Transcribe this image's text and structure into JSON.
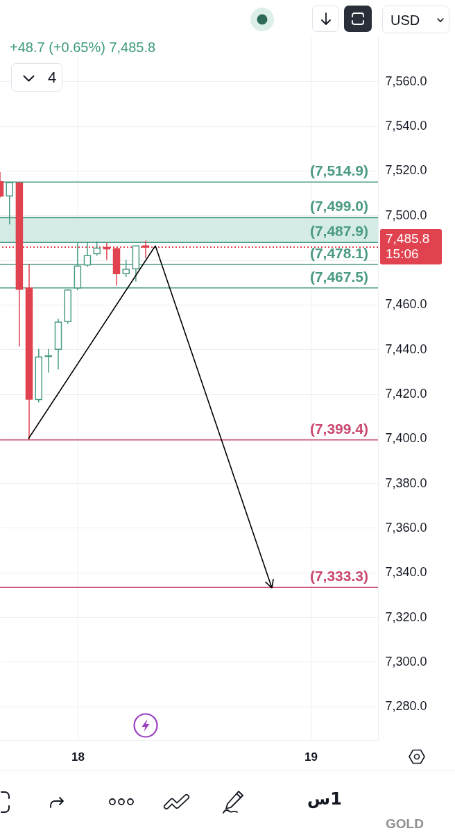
{
  "chart_data": {
    "type": "candlestick",
    "subtitle": "+48.7 (+0.65%) 7,485.8",
    "x": [
      17.667,
      17.708,
      17.75,
      17.792,
      17.833,
      17.875,
      17.917,
      17.958,
      18,
      18.042,
      18.083,
      18.125,
      18.167,
      18.208,
      18.25,
      18.292
    ],
    "ohlc": [
      [
        7515.1,
        7519.4,
        7508.0,
        7508.6
      ],
      [
        7508.7,
        7515.0,
        7496.0,
        7514.6
      ],
      [
        7514.5,
        7514.9,
        7441.2,
        7466.9
      ],
      [
        7467.5,
        7478.1,
        7399.4,
        7417.7
      ],
      [
        7417.5,
        7440.2,
        7416.2,
        7436.6
      ],
      [
        7436.8,
        7440.2,
        7429.6,
        7437.1
      ],
      [
        7440.0,
        7453.7,
        7431.0,
        7452.2
      ],
      [
        7452.4,
        7467.0,
        7451.4,
        7466.6
      ],
      [
        7467.5,
        7487.7,
        7466.4,
        7477.3
      ],
      [
        7477.8,
        7488.2,
        7477.0,
        7482.0
      ],
      [
        7482.8,
        7488.4,
        7482.0,
        7485.3
      ],
      [
        7485.6,
        7487.7,
        7480.1,
        7485.0
      ],
      [
        7485.1,
        7485.6,
        7468.5,
        7473.9
      ],
      [
        7473.9,
        7480.1,
        7472.4,
        7475.8
      ],
      [
        7476.1,
        7486.5,
        7470.3,
        7486.3
      ],
      [
        7486.3,
        7488.7,
        7480.9,
        7485.8
      ]
    ],
    "colors": [
      "#e0434f",
      "#4a9b86",
      "#e0434f",
      "#e0434f",
      "#4a9b86",
      "#4a9b86",
      "#4a9b86",
      "#4a9b86",
      "#4a9b86",
      "#4a9b86",
      "#4a9b86",
      "#e0434f",
      "#e0434f",
      "#4a9b86",
      "#4a9b86",
      "#e0434f"
    ],
    "xlim": [
      17.667,
      19.289
    ],
    "xticks": [
      18,
      19
    ],
    "ylim": [
      7265,
      7580
    ],
    "yticks": [
      {
        "value": 7280,
        "label": "7,280.0"
      },
      {
        "value": 7300,
        "label": "7,300.0"
      },
      {
        "value": 7320,
        "label": "7,320.0"
      },
      {
        "value": 7340,
        "label": "7,340.0"
      },
      {
        "value": 7360,
        "label": "7,360.0"
      },
      {
        "value": 7380,
        "label": "7,380.0"
      },
      {
        "value": 7400,
        "label": "7,400.0"
      },
      {
        "value": 7420,
        "label": "7,420.0"
      },
      {
        "value": 7440,
        "label": "7,440.0"
      },
      {
        "value": 7460,
        "label": "7,460.0"
      },
      {
        "value": 7480,
        "label": null
      },
      {
        "value": 7500,
        "label": "7,500.0"
      },
      {
        "value": 7520,
        "label": "7,520.0"
      },
      {
        "value": 7540,
        "label": "7,540.0"
      },
      {
        "value": 7560,
        "label": "7,560.0"
      }
    ],
    "grid": true,
    "bands": [
      {
        "axis": "y",
        "from": 7487.9,
        "to": 7499.0,
        "color": "#d4ebe6"
      }
    ],
    "ref_lines": [
      {
        "axis": "y",
        "value": 7514.9,
        "label": "(7,514.9)",
        "color": "#4a9a84"
      },
      {
        "axis": "y",
        "value": 7499.0,
        "label": "(7,499.0)",
        "color": "#4a9a84"
      },
      {
        "axis": "y",
        "value": 7487.9,
        "label": "(7,487.9)",
        "color": "#4a9a84"
      },
      {
        "axis": "y",
        "value": 7478.1,
        "label": "(7,478.1)",
        "color": "#4a9a84"
      },
      {
        "axis": "y",
        "value": 7467.5,
        "label": "(7,467.5)",
        "color": "#4a9a84"
      },
      {
        "axis": "y",
        "value": 7399.4,
        "label": "(7,399.4)",
        "color": "#c94a6e"
      },
      {
        "axis": "y",
        "value": 7333.3,
        "label": "(7,333.3)",
        "color": "#c94a6e"
      },
      {
        "axis": "y",
        "value": 7485.8,
        "label": "7,485.8\n15:06",
        "color": "#e0434f",
        "line_style": "dotted"
      }
    ],
    "annotations": [
      "USD",
      "4",
      "1س",
      "GOLD"
    ]
  }
}
